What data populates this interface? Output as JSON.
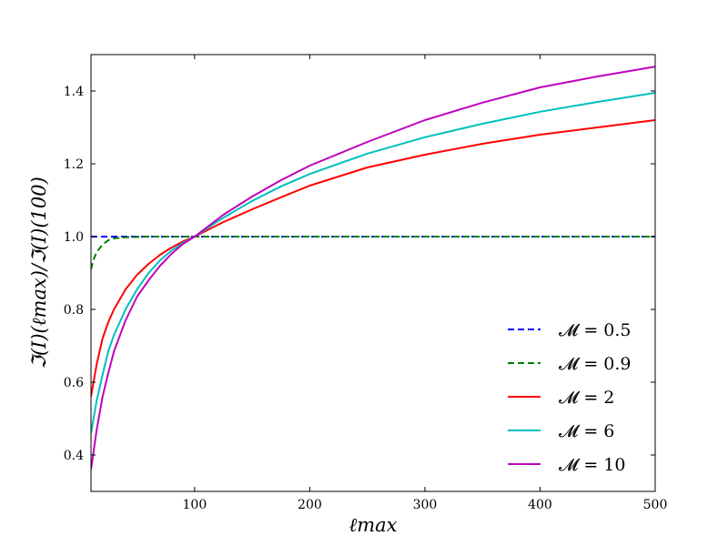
{
  "chart_data": {
    "type": "line",
    "xlabel": "ℓmax",
    "ylabel": "ℑ(I)(ℓmax)/ℑ(I)(100)",
    "xlim": [
      10,
      500
    ],
    "ylim": [
      0.3,
      1.5
    ],
    "xticks": [
      100,
      200,
      300,
      400,
      500
    ],
    "yticks": [
      0.4,
      0.6,
      0.8,
      1.0,
      1.2,
      1.4
    ],
    "xtick_labels": [
      "100",
      "200",
      "300",
      "400",
      "500"
    ],
    "ytick_labels": [
      "0.4",
      "0.6",
      "0.8",
      "1.0",
      "1.2",
      "1.4"
    ],
    "grid": false,
    "legend_position": "lower-right",
    "series": [
      {
        "name": "𝓜 = 0.5",
        "color": "#0000ff",
        "dash": "dashed",
        "x": [
          10,
          500
        ],
        "y": [
          1.0,
          1.0
        ]
      },
      {
        "name": "𝓜 = 0.9",
        "color": "#008000",
        "dash": "dashed",
        "x": [
          10,
          12,
          15,
          20,
          25,
          30,
          35,
          40,
          50,
          60,
          80,
          100,
          150,
          200,
          300,
          400,
          500
        ],
        "y": [
          0.91,
          0.935,
          0.958,
          0.978,
          0.99,
          0.995,
          0.997,
          0.998,
          0.999,
          1.0,
          1.0,
          1.0,
          1.0,
          1.0,
          1.0,
          1.0,
          1.0
        ]
      },
      {
        "name": "𝓜 = 2",
        "color": "#ff0000",
        "dash": "solid",
        "x": [
          10,
          15,
          20,
          25,
          30,
          40,
          50,
          60,
          70,
          80,
          90,
          100,
          125,
          150,
          175,
          200,
          250,
          300,
          350,
          400,
          450,
          500
        ],
        "y": [
          0.56,
          0.65,
          0.72,
          0.765,
          0.8,
          0.855,
          0.895,
          0.925,
          0.95,
          0.97,
          0.987,
          1.0,
          1.04,
          1.075,
          1.108,
          1.14,
          1.19,
          1.225,
          1.255,
          1.28,
          1.3,
          1.32
        ]
      },
      {
        "name": "𝓜 = 6",
        "color": "#00bfbf",
        "dash": "solid",
        "x": [
          10,
          15,
          20,
          25,
          30,
          40,
          50,
          60,
          70,
          80,
          90,
          100,
          125,
          150,
          175,
          200,
          250,
          300,
          350,
          400,
          450,
          500
        ],
        "y": [
          0.46,
          0.55,
          0.62,
          0.685,
          0.73,
          0.8,
          0.855,
          0.9,
          0.935,
          0.962,
          0.983,
          1.0,
          1.052,
          1.098,
          1.138,
          1.172,
          1.228,
          1.273,
          1.31,
          1.343,
          1.37,
          1.395
        ]
      },
      {
        "name": "𝓜 = 10",
        "color": "#bf00bf",
        "dash": "solid",
        "x": [
          10,
          15,
          20,
          25,
          30,
          40,
          50,
          60,
          70,
          80,
          90,
          100,
          125,
          150,
          175,
          200,
          250,
          300,
          350,
          400,
          450,
          500
        ],
        "y": [
          0.36,
          0.47,
          0.56,
          0.625,
          0.685,
          0.77,
          0.835,
          0.88,
          0.92,
          0.953,
          0.98,
          1.0,
          1.06,
          1.11,
          1.155,
          1.195,
          1.26,
          1.32,
          1.368,
          1.41,
          1.44,
          1.467
        ]
      }
    ]
  }
}
